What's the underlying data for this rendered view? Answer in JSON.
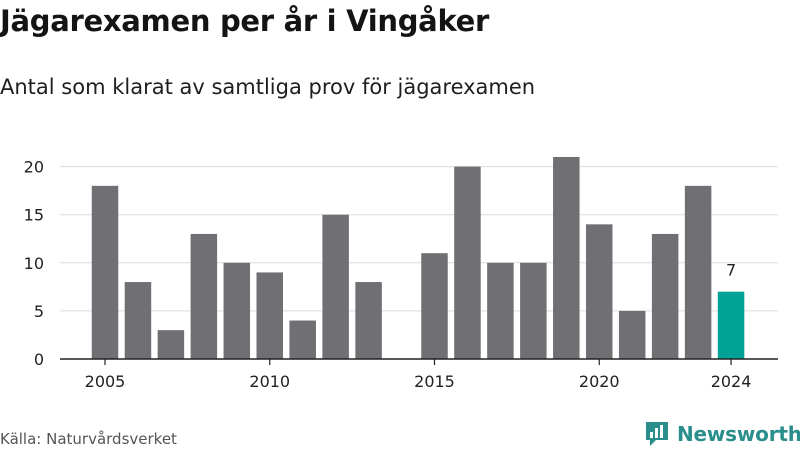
{
  "header": {
    "title": "Jägarexamen per år i Vingåker",
    "subtitle": "Antal som klarat av samtliga prov för jägarexamen"
  },
  "footer": {
    "source": "Källa: Naturvårdsverket",
    "brand": "Newsworthy",
    "brand_icon": "chart-logo-icon"
  },
  "colors": {
    "bar": "#707074",
    "highlight": "#00a396",
    "grid": "#dcdcdc",
    "brand": "#2a8f8c"
  },
  "chart_data": {
    "type": "bar",
    "title": "Jägarexamen per år i Vingåker",
    "subtitle": "Antal som klarat av samtliga prov för jägarexamen",
    "x": [
      2005,
      2006,
      2007,
      2008,
      2009,
      2010,
      2011,
      2012,
      2013,
      2014,
      2015,
      2016,
      2017,
      2018,
      2019,
      2020,
      2021,
      2022,
      2023,
      2024
    ],
    "values": [
      18,
      8,
      3,
      13,
      10,
      9,
      4,
      15,
      8,
      0,
      11,
      20,
      10,
      10,
      21,
      14,
      5,
      13,
      18,
      7
    ],
    "highlight_index": 19,
    "highlight_label": "7",
    "x_ticks": [
      "2005",
      "2010",
      "2015",
      "2020",
      "2024"
    ],
    "x_tick_values": [
      2005,
      2010,
      2015,
      2020,
      2024
    ],
    "y_ticks": [
      "0",
      "5",
      "10",
      "15",
      "20"
    ],
    "y_tick_values": [
      0,
      5,
      10,
      15,
      20
    ],
    "ylim": [
      0,
      21
    ],
    "grid": true
  }
}
